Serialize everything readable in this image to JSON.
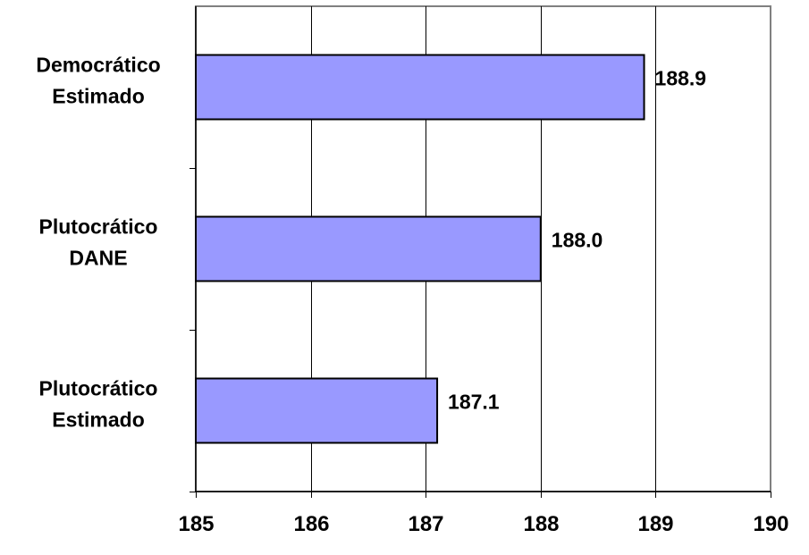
{
  "chart_data": {
    "type": "bar",
    "orientation": "horizontal",
    "categories": [
      [
        "Democrático",
        "Estimado"
      ],
      [
        "Plutocrático",
        "DANE"
      ],
      [
        "Plutocrático",
        "Estimado"
      ]
    ],
    "values": [
      188.9,
      188.0,
      187.1
    ],
    "data_labels": [
      "188.9",
      "188.0",
      "187.1"
    ],
    "xlim": [
      185,
      190
    ],
    "xticks": [
      185,
      186,
      187,
      188,
      189,
      190
    ],
    "title": "",
    "xlabel": "",
    "ylabel": "",
    "grid": "vertical",
    "legend": "none",
    "colors": {
      "bar_fill": "#9999ff",
      "bar_stroke": "#000000",
      "plot_border": "#808080",
      "gridline": "#000000"
    }
  }
}
